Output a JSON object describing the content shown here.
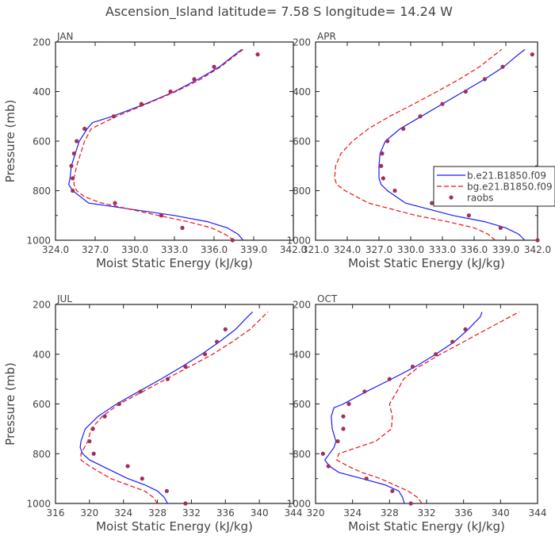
{
  "figure_title": "Ascension_Island  latitude= 7.58 S longitude= 14.24 W",
  "colors": {
    "model_b": "#1a1aff",
    "model_bg": "#ee1111",
    "raobs": "#a0305a"
  },
  "chart_data": [
    {
      "type": "line",
      "panel": "JAN",
      "xlabel": "Moist Static Energy (kJ/kg)",
      "ylabel": "Pressure (mb)",
      "xlim": [
        324.0,
        342.0
      ],
      "ylim": [
        1000,
        200
      ],
      "x_ticks": [
        "324.0",
        "327.0",
        "330.0",
        "333.0",
        "336.0",
        "339.0",
        "342.0"
      ],
      "y_ticks": [
        "200",
        "400",
        "600",
        "800",
        "1000"
      ],
      "legend": null,
      "series": [
        {
          "name": "b.e21.B1850.f09",
          "style": "solid",
          "color": "#1a1aff",
          "pressure": [
            1000,
            975,
            950,
            925,
            900,
            850,
            800,
            775,
            750,
            700,
            650,
            600,
            550,
            525,
            500,
            450,
            400,
            350,
            300,
            250,
            230
          ],
          "mse": [
            338.2,
            337.8,
            337.0,
            335.5,
            333.0,
            326.5,
            325.3,
            325.0,
            325.1,
            325.2,
            325.5,
            325.8,
            326.4,
            326.8,
            328.3,
            330.8,
            333.0,
            334.8,
            336.4,
            337.6,
            338.1
          ]
        },
        {
          "name": "bg.e21.B1850.f09",
          "style": "dashed",
          "color": "#ee1111",
          "pressure": [
            1000,
            975,
            950,
            925,
            900,
            850,
            825,
            800,
            775,
            750,
            700,
            650,
            600,
            550,
            500,
            450,
            400,
            350,
            300,
            250,
            230
          ],
          "mse": [
            337.5,
            336.8,
            335.8,
            334.0,
            331.8,
            327.5,
            326.2,
            325.6,
            325.4,
            325.4,
            325.6,
            325.9,
            326.2,
            326.7,
            328.6,
            330.9,
            333.1,
            335.0,
            336.5,
            337.7,
            338.2
          ]
        },
        {
          "name": "raobs",
          "style": "markers",
          "color": "#a0305a",
          "pressure": [
            1000,
            950,
            900,
            850,
            800,
            750,
            700,
            650,
            600,
            550,
            500,
            450,
            400,
            350,
            300,
            250
          ],
          "mse": [
            337.4,
            333.6,
            332.0,
            328.5,
            325.3,
            325.3,
            325.2,
            325.4,
            325.6,
            326.2,
            328.4,
            330.5,
            332.7,
            334.5,
            336.0,
            339.3
          ]
        }
      ]
    },
    {
      "type": "line",
      "panel": "APR",
      "xlabel": "Moist Static Energy (kJ/kg)",
      "ylabel": "",
      "xlim": [
        321.0,
        342.0
      ],
      "ylim": [
        1000,
        200
      ],
      "x_ticks": [
        "321.0",
        "324.0",
        "327.0",
        "330.0",
        "333.0",
        "336.0",
        "339.0",
        "342.0"
      ],
      "y_ticks": [
        "200",
        "400",
        "600",
        "800",
        "1000"
      ],
      "legend": "right",
      "legend_entries": [
        "b.e21.B1850.f09",
        "bg.e21.B1850.f09",
        "raobs"
      ],
      "series": [
        {
          "name": "b.e21.B1850.f09",
          "style": "solid",
          "color": "#1a1aff",
          "pressure": [
            1000,
            975,
            950,
            925,
            900,
            850,
            800,
            775,
            750,
            700,
            650,
            600,
            550,
            500,
            450,
            400,
            350,
            300,
            250,
            230
          ],
          "mse": [
            340.8,
            340.2,
            339.0,
            337.0,
            334.0,
            329.5,
            327.8,
            327.2,
            327.0,
            327.0,
            327.1,
            327.6,
            329.0,
            331.0,
            333.0,
            335.0,
            337.0,
            338.8,
            340.2,
            340.8
          ]
        },
        {
          "name": "bg.e21.B1850.f09",
          "style": "dashed",
          "color": "#ee1111",
          "pressure": [
            1000,
            975,
            950,
            925,
            900,
            850,
            800,
            775,
            750,
            700,
            650,
            600,
            550,
            500,
            450,
            400,
            350,
            300,
            250,
            230
          ],
          "mse": [
            338.0,
            337.3,
            336.0,
            333.5,
            330.5,
            326.0,
            323.8,
            323.0,
            322.8,
            322.9,
            323.4,
            324.5,
            326.0,
            328.0,
            330.3,
            332.5,
            334.6,
            336.5,
            338.0,
            338.6
          ]
        },
        {
          "name": "raobs",
          "style": "markers",
          "color": "#a0305a",
          "pressure": [
            1000,
            950,
            900,
            850,
            800,
            750,
            700,
            650,
            600,
            550,
            500,
            450,
            400,
            350,
            300,
            250
          ],
          "mse": [
            342.0,
            338.5,
            335.5,
            332.0,
            328.5,
            327.4,
            327.2,
            327.3,
            327.8,
            329.3,
            330.9,
            333.0,
            335.2,
            337.0,
            338.7,
            341.5
          ]
        }
      ]
    },
    {
      "type": "line",
      "panel": "JUL",
      "xlabel": "Moist Static Energy (kJ/kg)",
      "ylabel": "Pressure (mb)",
      "xlim": [
        316,
        344
      ],
      "ylim": [
        1000,
        200
      ],
      "x_ticks": [
        "316",
        "320",
        "324",
        "328",
        "332",
        "336",
        "340",
        "344"
      ],
      "y_ticks": [
        "200",
        "400",
        "600",
        "800",
        "1000"
      ],
      "legend": null,
      "series": [
        {
          "name": "b.e21.B1850.f09",
          "style": "solid",
          "color": "#1a1aff",
          "pressure": [
            1000,
            975,
            950,
            925,
            900,
            850,
            825,
            800,
            775,
            750,
            700,
            650,
            600,
            550,
            500,
            450,
            400,
            350,
            300,
            250,
            230
          ],
          "mse": [
            329.2,
            328.8,
            328.0,
            326.5,
            324.5,
            321.5,
            320.0,
            319.2,
            318.9,
            319.0,
            319.5,
            321.0,
            323.2,
            325.8,
            328.4,
            330.9,
            333.2,
            335.3,
            337.2,
            338.6,
            339.2
          ]
        },
        {
          "name": "bg.e21.B1850.f09",
          "style": "dashed",
          "color": "#ee1111",
          "pressure": [
            1000,
            975,
            950,
            925,
            900,
            850,
            825,
            800,
            775,
            750,
            700,
            650,
            600,
            550,
            500,
            450,
            400,
            350,
            300,
            250,
            230
          ],
          "mse": [
            328.0,
            327.5,
            326.5,
            324.5,
            322.5,
            320.0,
            319.0,
            319.0,
            319.4,
            319.8,
            320.2,
            321.5,
            323.5,
            326.3,
            329.0,
            331.8,
            334.5,
            336.8,
            338.9,
            340.4,
            341.0
          ]
        },
        {
          "name": "raobs",
          "style": "markers",
          "color": "#a0305a",
          "pressure": [
            1000,
            950,
            900,
            850,
            800,
            750,
            700,
            650,
            600,
            550,
            500,
            450,
            400,
            350,
            300
          ],
          "mse": [
            331.3,
            329.1,
            326.2,
            324.5,
            320.5,
            320.0,
            320.4,
            321.8,
            323.5,
            326.0,
            329.2,
            331.3,
            333.6,
            335.0,
            336.0
          ]
        }
      ]
    },
    {
      "type": "line",
      "panel": "OCT",
      "xlabel": "Moist Static Energy (kJ/kg)",
      "ylabel": "",
      "xlim": [
        320,
        344
      ],
      "ylim": [
        1000,
        200
      ],
      "x_ticks": [
        "320",
        "324",
        "328",
        "332",
        "336",
        "340",
        "344"
      ],
      "y_ticks": [
        "200",
        "400",
        "600",
        "800",
        "1000"
      ],
      "legend": null,
      "series": [
        {
          "name": "b.e21.B1850.f09",
          "style": "solid",
          "color": "#1a1aff",
          "pressure": [
            1000,
            975,
            950,
            925,
            900,
            875,
            850,
            825,
            800,
            775,
            750,
            700,
            650,
            615,
            600,
            550,
            500,
            450,
            400,
            350,
            300,
            250,
            230
          ],
          "mse": [
            329.6,
            329.4,
            329.0,
            327.5,
            325.0,
            322.5,
            321.5,
            321.0,
            321.5,
            322.0,
            322.2,
            321.8,
            321.7,
            322.0,
            323.0,
            325.5,
            328.2,
            330.8,
            333.0,
            335.0,
            336.5,
            337.8,
            338.0
          ]
        },
        {
          "name": "bg.e21.B1850.f09",
          "style": "dashed",
          "color": "#ee1111",
          "pressure": [
            1000,
            975,
            950,
            925,
            900,
            875,
            850,
            825,
            800,
            775,
            750,
            700,
            650,
            600,
            550,
            500,
            450,
            400,
            350,
            300,
            250,
            230
          ],
          "mse": [
            331.5,
            331.0,
            330.0,
            328.5,
            327.0,
            325.0,
            323.5,
            322.3,
            322.5,
            324.5,
            326.5,
            328.2,
            328.3,
            328.0,
            328.8,
            329.5,
            331.2,
            333.5,
            336.0,
            338.5,
            341.0,
            342.0
          ]
        },
        {
          "name": "raobs",
          "style": "markers",
          "color": "#a0305a",
          "pressure": [
            1000,
            950,
            900,
            850,
            800,
            750,
            700,
            650,
            600,
            550,
            500,
            450,
            400,
            350,
            300
          ],
          "mse": [
            330.3,
            328.3,
            325.5,
            321.4,
            320.8,
            322.4,
            323.0,
            323.0,
            323.6,
            325.3,
            328.0,
            330.5,
            333.0,
            334.8,
            336.2
          ]
        }
      ]
    }
  ]
}
